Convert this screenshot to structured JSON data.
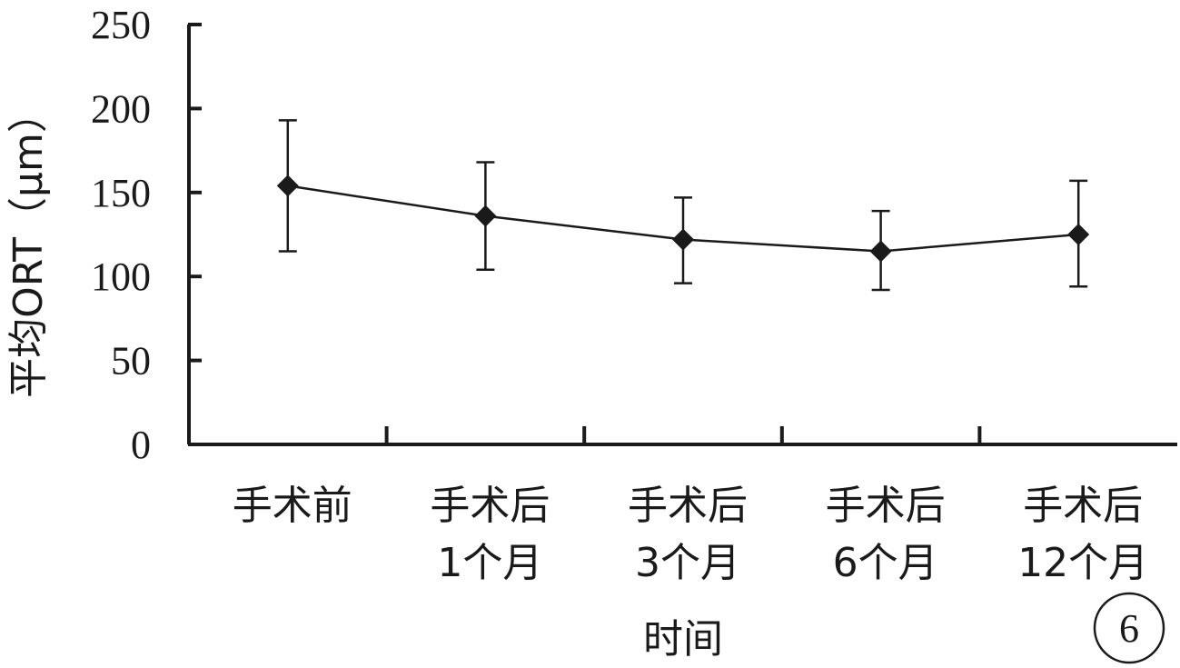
{
  "chart_data": {
    "type": "line",
    "categories": [
      [
        "手术前"
      ],
      [
        "手术后",
        "1个月"
      ],
      [
        "手术后",
        "3个月"
      ],
      [
        "手术后",
        "6个月"
      ],
      [
        "手术后",
        "12个月"
      ]
    ],
    "series": [
      {
        "values": [
          154,
          136,
          122,
          115,
          125
        ],
        "error_upper": [
          193,
          168,
          147,
          139,
          157
        ],
        "error_lower": [
          115,
          104,
          96,
          92,
          94
        ]
      }
    ],
    "xlabel": "时间",
    "ylabel": "平均ORT（μm）",
    "ylim": [
      0,
      250
    ],
    "yticks": [
      0,
      50,
      100,
      150,
      200,
      250
    ],
    "grid": false,
    "legend": "none",
    "panel_label": "6",
    "colors": {
      "line": "#1a1a1a",
      "marker": "#1a1a1a",
      "axis": "#1a1a1a"
    }
  }
}
